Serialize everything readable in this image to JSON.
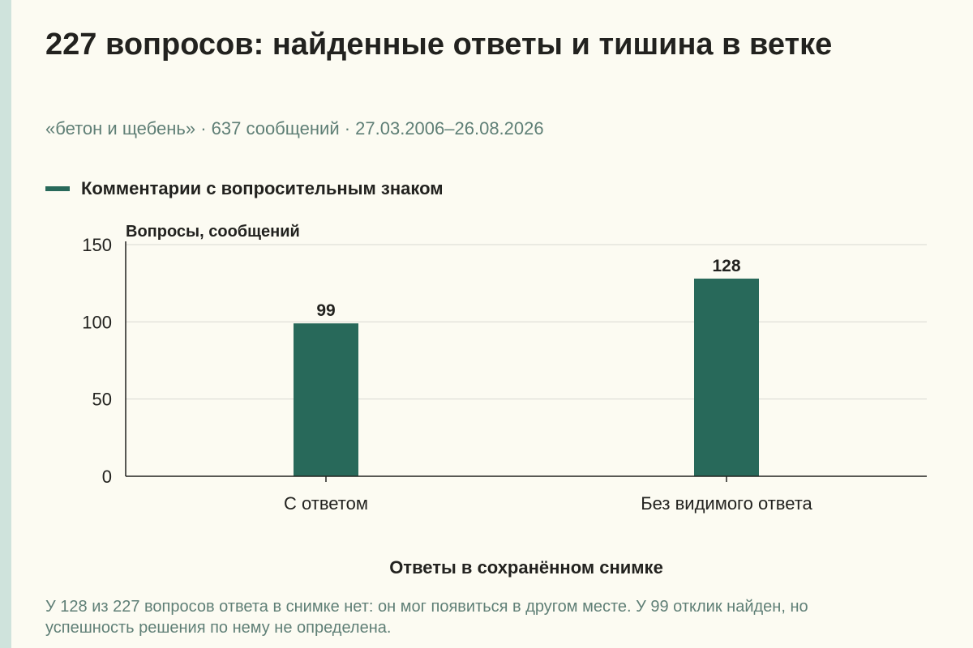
{
  "header": {
    "title": "227 вопросов: найденные ответы и тишина в ветке",
    "subtitle": "«бетон и щебень» · 637 сообщений · 27.03.2006–26.08.2026"
  },
  "colors": {
    "background": "#fcfbf2",
    "accent_strip": "#cfe3dc",
    "bar": "#28695a",
    "text": "#22221f",
    "muted_text": "#5f7f76",
    "grid": "#d9d9d2"
  },
  "chart_data": {
    "type": "bar",
    "categories": [
      "С ответом",
      "Без видимого ответа"
    ],
    "series": [
      {
        "name": "Комментарии с вопросительным знаком",
        "values": [
          99,
          128
        ]
      }
    ],
    "data_labels": [
      "99",
      "128"
    ],
    "ylabel": "Вопросы, сообщений",
    "xlabel": "Ответы в сохранённом снимке",
    "ylim": [
      0,
      150
    ],
    "yticks": [
      0,
      50,
      100,
      150
    ],
    "ytick_labels": [
      "0",
      "50",
      "100",
      "150"
    ],
    "grid": true,
    "legend_position": "top-left"
  },
  "caption": "У 128 из 227 вопросов ответа в снимке нет: он мог появиться в другом месте. У 99 отклик найден, но успешность решения по нему не определена."
}
